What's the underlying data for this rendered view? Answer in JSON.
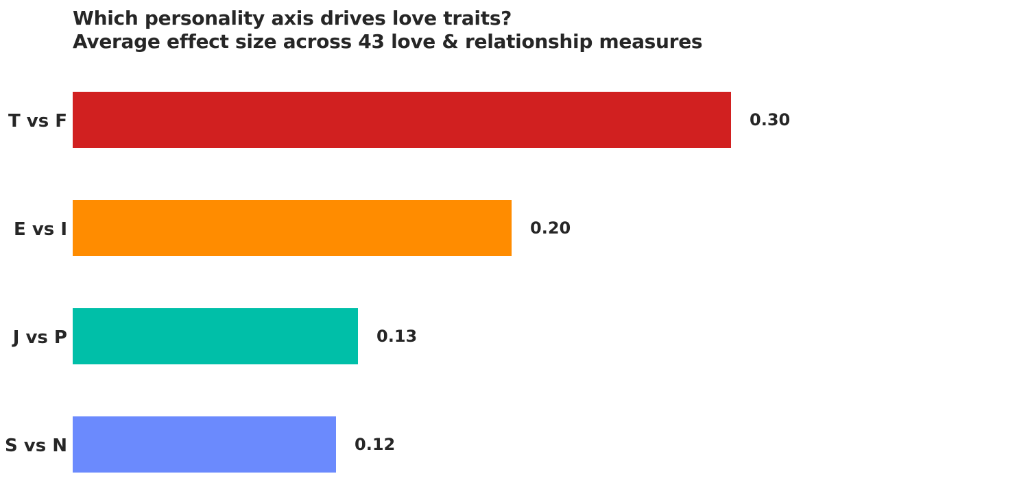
{
  "chart_data": {
    "type": "bar",
    "orientation": "horizontal",
    "title": "Which personality axis drives love traits?",
    "subtitle": "Average effect size across 43 love & relationship measures",
    "categories": [
      "T vs F",
      "E vs I",
      "J vs P",
      "S vs N"
    ],
    "values": [
      0.3,
      0.2,
      0.13,
      0.12
    ],
    "value_labels": [
      "0.30",
      "0.20",
      "0.13",
      "0.12"
    ],
    "colors": [
      "#d12020",
      "#ff8c00",
      "#00bfa8",
      "#6b8afd"
    ],
    "xlabel": "",
    "ylabel": "",
    "xlim": [
      0,
      0.44
    ],
    "grid": false,
    "legend": "none"
  }
}
